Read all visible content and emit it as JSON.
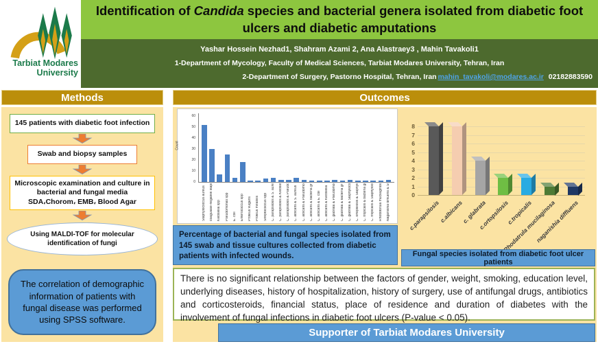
{
  "theme": {
    "light_green": "#8DC63F",
    "dark_green": "#4D6A2E",
    "gold": "#BB8E0B",
    "pale_yellow": "#FBE3A3",
    "blue_box": "#5B9BD5",
    "blue_border": "#41719C",
    "link_blue": "#4FA3E8",
    "results_border": "#9CB356",
    "logo_green": "#1B7A4A",
    "logo_gold": "#D4A017"
  },
  "header": {
    "logo_line1": "Tarbiat Modares",
    "logo_line2": "University",
    "title_prefix": "Identification of ",
    "title_italic": "Candida",
    "title_suffix": " species and bacterial genera isolated from diabetic foot ulcers and diabetic amputations",
    "authors": "Yashar Hossein Nezhad1,  Shahram Azami 2, Ana Alastraey3 , Mahin Tavakoli1",
    "affiliation1": "1-Department of Mycology, Faculty of Medical Sciences, Tarbiat Modares University, Tehran, Iran",
    "affiliation2": "2-Department of Surgery, Pastorno Hospital, Tehran, Iran",
    "email": "mahin_tavakoli@modares.ac.ir",
    "phone": "02182883590"
  },
  "methods": {
    "header": "Methods",
    "steps": [
      "145 patients with diabetic foot infection",
      "Swab and biopsy samples",
      "Microscopic examination and culture in bacterial and fungal media\nSDA،Chorom، EMB، Blood Agar"
    ],
    "ellipse": "Using MALDI-TOF for molecular identification of fungi",
    "spss": "The correlation of demographic information of patients with fungal disease was performed using SPSS software."
  },
  "outcomes": {
    "header": "Outcomes",
    "caption_left": "Percentage of bacterial and fungal species isolated from 145 swab and tissue cultures collected from diabetic patients with infected wounds.",
    "caption_right": "Fungal species isolated from diabetic foot ulcer patients",
    "results": "There is no significant relationship between the factors of gender, weight, smoking, education level, underlying diseases, history of hospitalization, history of surgery, use of antifungal drugs, antibiotics and corticosteroids, financial status, place of residence and duration of diabetes with the involvement of fungal infections in diabetic foot ulcers (P-value < 0.05).",
    "supporter": "Supporter of Tarbiat Modares University"
  },
  "chart_data": [
    {
      "type": "bar",
      "title": "",
      "xlabel": "",
      "ylabel": "Count",
      "ylim": [
        0,
        60
      ],
      "yticks": [
        0,
        10,
        20,
        30,
        40,
        50,
        60
      ],
      "grid": false,
      "bar_color": "#4A80C4",
      "categories": [
        "Staphylococcus aureus",
        "coagulase-negative staphylococci",
        "Klebsiella spp",
        "Pseudomonas spp",
        "E. coli",
        "Enterococcus spp",
        "Proteus vulgaris",
        "Proteus mirabilis",
        "Streptococcus spp",
        "C. parapsilosis & S. aureus",
        "C. parapsilosis & Klebsiella spp",
        "C. parapsilosis & Pseudomonas",
        "C. albicans & S. aureus",
        "C. albicans & Pseudomonas",
        "C. albicans & bacteria gr+",
        "C. albicans & E. coli",
        "C. albicans & Klebsiella",
        "C. glabrata & Pseudomonas",
        "C. glabrata & bacteria gr+",
        "C. glabrata & Staphylococcus",
        "C. ortopsilosis & Staphylococcus",
        "C. tropicalis & bacteria gr+",
        "C. tropicalis & Staphylococcus",
        "Rhodotorula mucilaginosa & Staphylococcus",
        "Naganishia diffluens & Staphylococcus"
      ],
      "values": [
        52,
        30,
        7,
        25,
        4,
        18,
        1,
        1,
        3,
        4,
        2,
        2,
        4,
        2,
        1,
        1,
        1,
        2,
        1,
        2,
        1,
        1,
        1,
        1,
        2
      ]
    },
    {
      "type": "bar3d",
      "title": "",
      "xlabel": "",
      "ylabel": "",
      "ylim": [
        0,
        8
      ],
      "yticks": [
        0,
        1,
        2,
        3,
        4,
        5,
        6,
        7,
        8
      ],
      "grid": true,
      "categories": [
        "c.parapsilosis",
        "c.albicans",
        "c. glabrata",
        "c.ortopsilosis",
        "c.tropicalis",
        "Rhodatrula mucilaginosa",
        "naganishia diffluens"
      ],
      "values": [
        8,
        8,
        4,
        2,
        2,
        1,
        1
      ],
      "colors": [
        "#595959",
        "#F5CDB0",
        "#A5A5A5",
        "#6FBE44",
        "#29ABE2",
        "#4E7B35",
        "#1F3864"
      ]
    }
  ]
}
